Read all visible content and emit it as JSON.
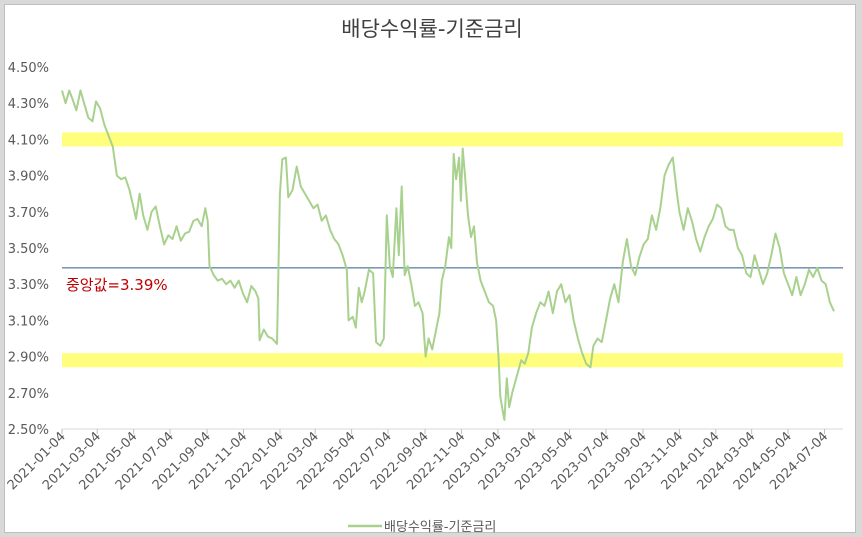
{
  "chart_data": {
    "type": "line",
    "title": "배당수익률-기준금리",
    "xlabel": "",
    "ylabel": "",
    "ylim": [
      2.5,
      4.5
    ],
    "y_ticks": [
      "4.50%",
      "4.30%",
      "4.10%",
      "3.90%",
      "3.70%",
      "3.50%",
      "3.30%",
      "3.10%",
      "2.90%",
      "2.70%",
      "2.50%"
    ],
    "x_tick_labels": [
      "2021-01-04",
      "2021-03-04",
      "2021-05-04",
      "2021-07-04",
      "2021-09-04",
      "2021-11-04",
      "2022-01-04",
      "2022-03-04",
      "2022-05-04",
      "2022-07-04",
      "2022-09-04",
      "2022-11-04",
      "2023-01-04",
      "2023-03-04",
      "2023-05-04",
      "2023-07-04",
      "2023-09-04",
      "2023-11-04",
      "2024-01-04",
      "2024-03-04",
      "2024-05-04",
      "2024-07-04"
    ],
    "x_range": [
      "2021-01-04",
      "2024-08-04"
    ],
    "grid": false,
    "legend_position": "bottom",
    "series": [
      {
        "name": "배당수익률-기준금리",
        "color": "#a9d18e",
        "points": [
          [
            "2021-01-04",
            4.37
          ],
          [
            "2021-01-10",
            4.3
          ],
          [
            "2021-01-16",
            4.37
          ],
          [
            "2021-01-22",
            4.32
          ],
          [
            "2021-01-28",
            4.26
          ],
          [
            "2021-02-04",
            4.37
          ],
          [
            "2021-02-10",
            4.3
          ],
          [
            "2021-02-17",
            4.22
          ],
          [
            "2021-02-24",
            4.2
          ],
          [
            "2021-03-02",
            4.31
          ],
          [
            "2021-03-09",
            4.27
          ],
          [
            "2021-03-16",
            4.18
          ],
          [
            "2021-03-23",
            4.12
          ],
          [
            "2021-03-30",
            4.06
          ],
          [
            "2021-04-06",
            3.9
          ],
          [
            "2021-04-13",
            3.88
          ],
          [
            "2021-04-20",
            3.89
          ],
          [
            "2021-04-27",
            3.82
          ],
          [
            "2021-05-04",
            3.72
          ],
          [
            "2021-05-08",
            3.66
          ],
          [
            "2021-05-14",
            3.8
          ],
          [
            "2021-05-20",
            3.68
          ],
          [
            "2021-05-27",
            3.6
          ],
          [
            "2021-06-03",
            3.7
          ],
          [
            "2021-06-10",
            3.73
          ],
          [
            "2021-06-17",
            3.62
          ],
          [
            "2021-06-24",
            3.52
          ],
          [
            "2021-07-01",
            3.57
          ],
          [
            "2021-07-08",
            3.55
          ],
          [
            "2021-07-15",
            3.62
          ],
          [
            "2021-07-22",
            3.54
          ],
          [
            "2021-07-29",
            3.58
          ],
          [
            "2021-08-05",
            3.59
          ],
          [
            "2021-08-12",
            3.65
          ],
          [
            "2021-08-19",
            3.66
          ],
          [
            "2021-08-26",
            3.62
          ],
          [
            "2021-09-01",
            3.72
          ],
          [
            "2021-09-05",
            3.65
          ],
          [
            "2021-09-08",
            3.4
          ],
          [
            "2021-09-15",
            3.35
          ],
          [
            "2021-09-22",
            3.32
          ],
          [
            "2021-09-29",
            3.33
          ],
          [
            "2021-10-06",
            3.3
          ],
          [
            "2021-10-13",
            3.32
          ],
          [
            "2021-10-20",
            3.28
          ],
          [
            "2021-10-27",
            3.32
          ],
          [
            "2021-11-03",
            3.25
          ],
          [
            "2021-11-10",
            3.2
          ],
          [
            "2021-11-17",
            3.29
          ],
          [
            "2021-11-24",
            3.26
          ],
          [
            "2021-11-29",
            3.22
          ],
          [
            "2021-12-01",
            2.99
          ],
          [
            "2021-12-08",
            3.05
          ],
          [
            "2021-12-15",
            3.01
          ],
          [
            "2021-12-22",
            3.0
          ],
          [
            "2021-12-30",
            2.97
          ],
          [
            "2022-01-04",
            3.8
          ],
          [
            "2022-01-08",
            3.99
          ],
          [
            "2022-01-14",
            4.0
          ],
          [
            "2022-01-18",
            3.78
          ],
          [
            "2022-01-25",
            3.82
          ],
          [
            "2022-02-01",
            3.95
          ],
          [
            "2022-02-08",
            3.84
          ],
          [
            "2022-02-15",
            3.8
          ],
          [
            "2022-02-22",
            3.76
          ],
          [
            "2022-03-01",
            3.72
          ],
          [
            "2022-03-08",
            3.74
          ],
          [
            "2022-03-15",
            3.65
          ],
          [
            "2022-03-22",
            3.68
          ],
          [
            "2022-03-29",
            3.6
          ],
          [
            "2022-04-05",
            3.55
          ],
          [
            "2022-04-12",
            3.52
          ],
          [
            "2022-04-19",
            3.46
          ],
          [
            "2022-04-26",
            3.38
          ],
          [
            "2022-04-29",
            3.1
          ],
          [
            "2022-05-06",
            3.12
          ],
          [
            "2022-05-11",
            3.06
          ],
          [
            "2022-05-16",
            3.28
          ],
          [
            "2022-05-21",
            3.2
          ],
          [
            "2022-05-26",
            3.26
          ],
          [
            "2022-06-02",
            3.38
          ],
          [
            "2022-06-09",
            3.36
          ],
          [
            "2022-06-14",
            2.98
          ],
          [
            "2022-06-21",
            2.96
          ],
          [
            "2022-06-27",
            3.0
          ],
          [
            "2022-07-02",
            3.68
          ],
          [
            "2022-07-07",
            3.4
          ],
          [
            "2022-07-12",
            3.34
          ],
          [
            "2022-07-18",
            3.72
          ],
          [
            "2022-07-22",
            3.46
          ],
          [
            "2022-07-27",
            3.84
          ],
          [
            "2022-08-01",
            3.35
          ],
          [
            "2022-08-06",
            3.4
          ],
          [
            "2022-08-12",
            3.3
          ],
          [
            "2022-08-18",
            3.18
          ],
          [
            "2022-08-24",
            3.2
          ],
          [
            "2022-08-31",
            3.14
          ],
          [
            "2022-09-05",
            2.9
          ],
          [
            "2022-09-10",
            3.0
          ],
          [
            "2022-09-16",
            2.94
          ],
          [
            "2022-09-22",
            3.04
          ],
          [
            "2022-09-28",
            3.14
          ],
          [
            "2022-10-02",
            3.32
          ],
          [
            "2022-10-08",
            3.4
          ],
          [
            "2022-10-14",
            3.56
          ],
          [
            "2022-10-18",
            3.5
          ],
          [
            "2022-10-22",
            4.02
          ],
          [
            "2022-10-26",
            3.88
          ],
          [
            "2022-10-31",
            4.0
          ],
          [
            "2022-11-03",
            3.76
          ],
          [
            "2022-11-06",
            4.05
          ],
          [
            "2022-11-10",
            3.9
          ],
          [
            "2022-11-15",
            3.68
          ],
          [
            "2022-11-20",
            3.56
          ],
          [
            "2022-11-25",
            3.62
          ],
          [
            "2022-11-30",
            3.42
          ],
          [
            "2022-12-06",
            3.32
          ],
          [
            "2022-12-13",
            3.26
          ],
          [
            "2022-12-20",
            3.2
          ],
          [
            "2022-12-27",
            3.18
          ],
          [
            "2023-01-01",
            3.1
          ],
          [
            "2023-01-05",
            2.9
          ],
          [
            "2023-01-08",
            2.68
          ],
          [
            "2023-01-12",
            2.6
          ],
          [
            "2023-01-15",
            2.55
          ],
          [
            "2023-01-19",
            2.78
          ],
          [
            "2023-01-23",
            2.62
          ],
          [
            "2023-01-28",
            2.7
          ],
          [
            "2023-02-02",
            2.76
          ],
          [
            "2023-02-07",
            2.82
          ],
          [
            "2023-02-12",
            2.88
          ],
          [
            "2023-02-18",
            2.86
          ],
          [
            "2023-02-24",
            2.92
          ],
          [
            "2023-03-02",
            3.06
          ],
          [
            "2023-03-09",
            3.14
          ],
          [
            "2023-03-16",
            3.2
          ],
          [
            "2023-03-23",
            3.18
          ],
          [
            "2023-03-30",
            3.26
          ],
          [
            "2023-04-06",
            3.14
          ],
          [
            "2023-04-13",
            3.26
          ],
          [
            "2023-04-20",
            3.3
          ],
          [
            "2023-04-27",
            3.2
          ],
          [
            "2023-05-04",
            3.24
          ],
          [
            "2023-05-11",
            3.1
          ],
          [
            "2023-05-18",
            3.0
          ],
          [
            "2023-05-25",
            2.92
          ],
          [
            "2023-06-01",
            2.86
          ],
          [
            "2023-06-08",
            2.84
          ],
          [
            "2023-06-13",
            2.96
          ],
          [
            "2023-06-20",
            3.0
          ],
          [
            "2023-06-27",
            2.98
          ],
          [
            "2023-07-04",
            3.1
          ],
          [
            "2023-07-11",
            3.22
          ],
          [
            "2023-07-18",
            3.3
          ],
          [
            "2023-07-25",
            3.2
          ],
          [
            "2023-08-01",
            3.42
          ],
          [
            "2023-08-08",
            3.55
          ],
          [
            "2023-08-15",
            3.4
          ],
          [
            "2023-08-22",
            3.35
          ],
          [
            "2023-08-29",
            3.45
          ],
          [
            "2023-09-05",
            3.52
          ],
          [
            "2023-09-12",
            3.55
          ],
          [
            "2023-09-19",
            3.68
          ],
          [
            "2023-09-26",
            3.6
          ],
          [
            "2023-10-03",
            3.72
          ],
          [
            "2023-10-10",
            3.9
          ],
          [
            "2023-10-17",
            3.96
          ],
          [
            "2023-10-24",
            4.0
          ],
          [
            "2023-10-31",
            3.8
          ],
          [
            "2023-11-04",
            3.7
          ],
          [
            "2023-11-11",
            3.6
          ],
          [
            "2023-11-18",
            3.72
          ],
          [
            "2023-11-25",
            3.65
          ],
          [
            "2023-12-02",
            3.55
          ],
          [
            "2023-12-09",
            3.48
          ],
          [
            "2023-12-16",
            3.56
          ],
          [
            "2023-12-23",
            3.62
          ],
          [
            "2023-12-30",
            3.66
          ],
          [
            "2024-01-06",
            3.74
          ],
          [
            "2024-01-13",
            3.72
          ],
          [
            "2024-01-20",
            3.62
          ],
          [
            "2024-01-27",
            3.6
          ],
          [
            "2024-02-03",
            3.6
          ],
          [
            "2024-02-10",
            3.5
          ],
          [
            "2024-02-17",
            3.46
          ],
          [
            "2024-02-24",
            3.36
          ],
          [
            "2024-03-02",
            3.34
          ],
          [
            "2024-03-09",
            3.46
          ],
          [
            "2024-03-16",
            3.38
          ],
          [
            "2024-03-23",
            3.3
          ],
          [
            "2024-03-30",
            3.36
          ],
          [
            "2024-04-06",
            3.46
          ],
          [
            "2024-04-13",
            3.58
          ],
          [
            "2024-04-20",
            3.5
          ],
          [
            "2024-04-27",
            3.36
          ],
          [
            "2024-05-04",
            3.3
          ],
          [
            "2024-05-11",
            3.24
          ],
          [
            "2024-05-18",
            3.34
          ],
          [
            "2024-05-25",
            3.24
          ],
          [
            "2024-06-01",
            3.3
          ],
          [
            "2024-06-08",
            3.38
          ],
          [
            "2024-06-15",
            3.34
          ],
          [
            "2024-06-22",
            3.39
          ],
          [
            "2024-06-29",
            3.32
          ],
          [
            "2024-07-06",
            3.3
          ],
          [
            "2024-07-13",
            3.2
          ],
          [
            "2024-07-20",
            3.15
          ]
        ]
      }
    ],
    "reference_line": {
      "label": "중앙값=3.39%",
      "value": 3.39,
      "color": "#2e5a87"
    },
    "highlight_bands": [
      {
        "center": 4.1,
        "color": "#ffff66"
      },
      {
        "center": 2.88,
        "color": "#ffff66"
      }
    ]
  }
}
